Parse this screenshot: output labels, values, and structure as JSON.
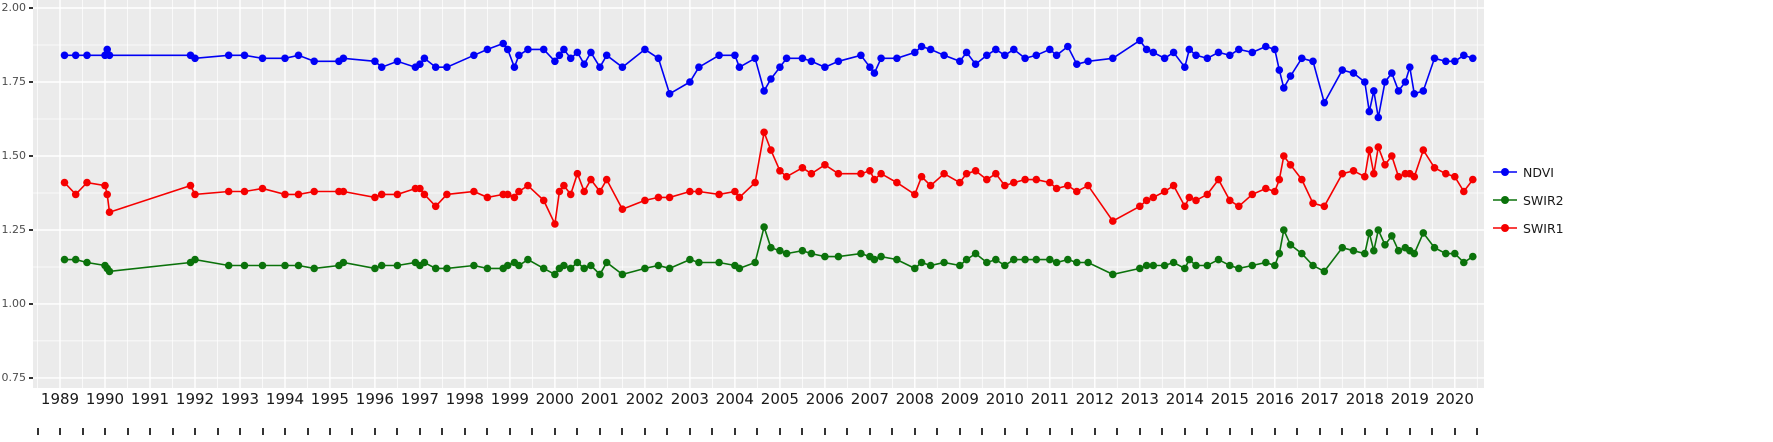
{
  "chart_data": {
    "type": "line",
    "title": "",
    "xlabel": "",
    "ylabel": "",
    "panel_background": "#EBEBEB",
    "grid_color": "#FFFFFF",
    "x_axis": {
      "range": [
        1988.4,
        2020.65
      ],
      "ticks": [
        1989,
        1990,
        1991,
        1992,
        1993,
        1994,
        1995,
        1996,
        1997,
        1998,
        1999,
        2000,
        2001,
        2002,
        2003,
        2004,
        2005,
        2006,
        2007,
        2008,
        2009,
        2010,
        2011,
        2012,
        2013,
        2014,
        2015,
        2016,
        2017,
        2018,
        2019,
        2020
      ],
      "tick_labels": [
        "1989",
        "1990",
        "1991",
        "1992",
        "1993",
        "1994",
        "1995",
        "1996",
        "1997",
        "1998",
        "1999",
        "2000",
        "2001",
        "2002",
        "2003",
        "2004",
        "2005",
        "2006",
        "2007",
        "2008",
        "2009",
        "2010",
        "2011",
        "2012",
        "2013",
        "2014",
        "2015",
        "2016",
        "2017",
        "2018",
        "2019",
        "2020"
      ]
    },
    "y_axis": {
      "range": [
        0.716,
        2.027
      ],
      "ticks": [
        0.75,
        1.0,
        1.25,
        1.5,
        1.75,
        2.0
      ],
      "tick_labels": [
        "0.75",
        "1.00",
        "1.25",
        "1.50",
        "1.75",
        "2.00"
      ],
      "minor_ticks": [
        0.875,
        1.125,
        1.375,
        1.625,
        1.875
      ]
    },
    "legend": {
      "position": "right",
      "entries": [
        {
          "label": "NDVI",
          "color": "#0000F5"
        },
        {
          "label": "SWIR2",
          "color": "#0B720B"
        },
        {
          "label": "SWIR1",
          "color": "#F50000"
        }
      ]
    },
    "x": [
      1989.1,
      1989.35,
      1989.6,
      1990.0,
      1990.05,
      1990.1,
      1991.9,
      1992.0,
      1992.75,
      1993.1,
      1993.5,
      1994.0,
      1994.3,
      1994.65,
      1995.2,
      1995.3,
      1996.0,
      1996.15,
      1996.5,
      1996.9,
      1997.0,
      1997.1,
      1997.35,
      1997.6,
      1998.2,
      1998.5,
      1998.85,
      1998.95,
      1999.1,
      1999.2,
      1999.4,
      1999.75,
      2000.0,
      2000.1,
      2000.2,
      2000.35,
      2000.5,
      2000.65,
      2000.8,
      2001.0,
      2001.15,
      2001.5,
      2002.0,
      2002.3,
      2002.55,
      2003.0,
      2003.2,
      2003.65,
      2004.0,
      2004.1,
      2004.45,
      2004.65,
      2004.8,
      2005.0,
      2005.15,
      2005.5,
      2005.7,
      2006.0,
      2006.3,
      2006.8,
      2007.0,
      2007.1,
      2007.25,
      2007.6,
      2008.0,
      2008.15,
      2008.35,
      2008.65,
      2009.0,
      2009.15,
      2009.35,
      2009.6,
      2009.8,
      2010.0,
      2010.2,
      2010.45,
      2010.7,
      2011.0,
      2011.15,
      2011.4,
      2011.6,
      2011.85,
      2012.4,
      2013.0,
      2013.15,
      2013.3,
      2013.55,
      2013.75,
      2014.0,
      2014.1,
      2014.25,
      2014.5,
      2014.75,
      2015.0,
      2015.2,
      2015.5,
      2015.8,
      2016.0,
      2016.1,
      2016.2,
      2016.35,
      2016.6,
      2016.85,
      2017.1,
      2017.5,
      2017.75,
      2018.0,
      2018.1,
      2018.2,
      2018.3,
      2018.45,
      2018.6,
      2018.75,
      2018.9,
      2019.0,
      2019.1,
      2019.3,
      2019.55,
      2019.8,
      2020.0,
      2020.2,
      2020.4
    ],
    "series": [
      {
        "name": "NDVI",
        "color": "#0000F5",
        "values": [
          1.84,
          1.84,
          1.84,
          1.84,
          1.86,
          1.84,
          1.84,
          1.83,
          1.84,
          1.84,
          1.83,
          1.83,
          1.84,
          1.82,
          1.82,
          1.83,
          1.82,
          1.8,
          1.82,
          1.8,
          1.81,
          1.83,
          1.8,
          1.8,
          1.84,
          1.86,
          1.88,
          1.86,
          1.8,
          1.84,
          1.86,
          1.86,
          1.82,
          1.84,
          1.86,
          1.83,
          1.85,
          1.81,
          1.85,
          1.8,
          1.84,
          1.8,
          1.86,
          1.83,
          1.71,
          1.75,
          1.8,
          1.84,
          1.84,
          1.8,
          1.83,
          1.72,
          1.76,
          1.8,
          1.83,
          1.83,
          1.82,
          1.8,
          1.82,
          1.84,
          1.8,
          1.78,
          1.83,
          1.83,
          1.85,
          1.87,
          1.86,
          1.84,
          1.82,
          1.85,
          1.81,
          1.84,
          1.86,
          1.84,
          1.86,
          1.83,
          1.84,
          1.86,
          1.84,
          1.87,
          1.81,
          1.82,
          1.83,
          1.89,
          1.86,
          1.85,
          1.83,
          1.85,
          1.8,
          1.86,
          1.84,
          1.83,
          1.85,
          1.84,
          1.86,
          1.85,
          1.87,
          1.86,
          1.79,
          1.73,
          1.77,
          1.83,
          1.82,
          1.68,
          1.79,
          1.78,
          1.75,
          1.65,
          1.72,
          1.63,
          1.75,
          1.78,
          1.72,
          1.75,
          1.8,
          1.71,
          1.72,
          1.83,
          1.82,
          1.82,
          1.84,
          1.83
        ]
      },
      {
        "name": "SWIR2",
        "color": "#0B720B",
        "values": [
          1.15,
          1.15,
          1.14,
          1.13,
          1.12,
          1.11,
          1.14,
          1.15,
          1.13,
          1.13,
          1.13,
          1.13,
          1.13,
          1.12,
          1.13,
          1.14,
          1.12,
          1.13,
          1.13,
          1.14,
          1.13,
          1.14,
          1.12,
          1.12,
          1.13,
          1.12,
          1.12,
          1.13,
          1.14,
          1.13,
          1.15,
          1.12,
          1.1,
          1.12,
          1.13,
          1.12,
          1.14,
          1.12,
          1.13,
          1.1,
          1.14,
          1.1,
          1.12,
          1.13,
          1.12,
          1.15,
          1.14,
          1.14,
          1.13,
          1.12,
          1.14,
          1.26,
          1.19,
          1.18,
          1.17,
          1.18,
          1.17,
          1.16,
          1.16,
          1.17,
          1.16,
          1.15,
          1.16,
          1.15,
          1.12,
          1.14,
          1.13,
          1.14,
          1.13,
          1.15,
          1.17,
          1.14,
          1.15,
          1.13,
          1.15,
          1.15,
          1.15,
          1.15,
          1.14,
          1.15,
          1.14,
          1.14,
          1.1,
          1.12,
          1.13,
          1.13,
          1.13,
          1.14,
          1.12,
          1.15,
          1.13,
          1.13,
          1.15,
          1.13,
          1.12,
          1.13,
          1.14,
          1.13,
          1.17,
          1.25,
          1.2,
          1.17,
          1.13,
          1.11,
          1.19,
          1.18,
          1.17,
          1.24,
          1.18,
          1.25,
          1.2,
          1.23,
          1.18,
          1.19,
          1.18,
          1.17,
          1.24,
          1.19,
          1.17,
          1.17,
          1.14,
          1.16
        ]
      },
      {
        "name": "SWIR1",
        "color": "#F50000",
        "values": [
          1.41,
          1.37,
          1.41,
          1.4,
          1.37,
          1.31,
          1.4,
          1.37,
          1.38,
          1.38,
          1.39,
          1.37,
          1.37,
          1.38,
          1.38,
          1.38,
          1.36,
          1.37,
          1.37,
          1.39,
          1.39,
          1.37,
          1.33,
          1.37,
          1.38,
          1.36,
          1.37,
          1.37,
          1.36,
          1.38,
          1.4,
          1.35,
          1.27,
          1.38,
          1.4,
          1.37,
          1.44,
          1.38,
          1.42,
          1.38,
          1.42,
          1.32,
          1.35,
          1.36,
          1.36,
          1.38,
          1.38,
          1.37,
          1.38,
          1.36,
          1.41,
          1.58,
          1.52,
          1.45,
          1.43,
          1.46,
          1.44,
          1.47,
          1.44,
          1.44,
          1.45,
          1.42,
          1.44,
          1.41,
          1.37,
          1.43,
          1.4,
          1.44,
          1.41,
          1.44,
          1.45,
          1.42,
          1.44,
          1.4,
          1.41,
          1.42,
          1.42,
          1.41,
          1.39,
          1.4,
          1.38,
          1.4,
          1.28,
          1.33,
          1.35,
          1.36,
          1.38,
          1.4,
          1.33,
          1.36,
          1.35,
          1.37,
          1.42,
          1.35,
          1.33,
          1.37,
          1.39,
          1.38,
          1.42,
          1.5,
          1.47,
          1.42,
          1.34,
          1.33,
          1.44,
          1.45,
          1.43,
          1.52,
          1.44,
          1.53,
          1.47,
          1.5,
          1.43,
          1.44,
          1.44,
          1.43,
          1.52,
          1.46,
          1.44,
          1.43,
          1.38,
          1.42
        ]
      }
    ]
  }
}
